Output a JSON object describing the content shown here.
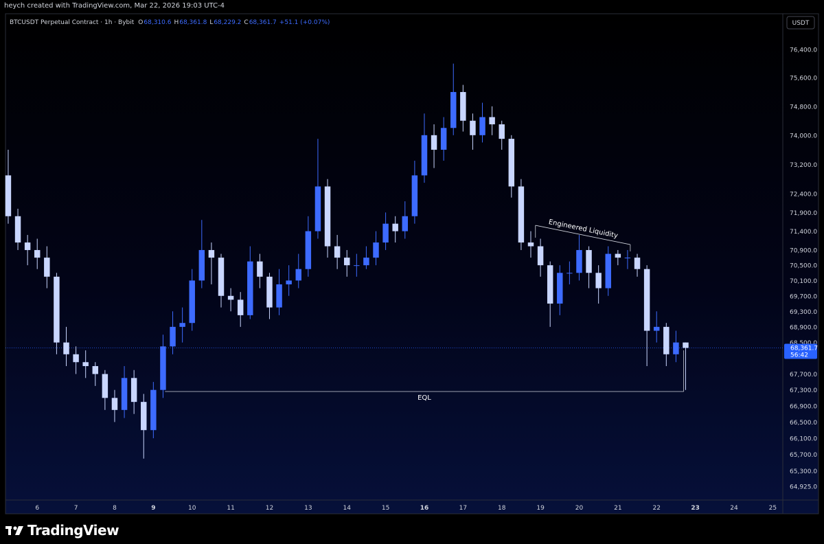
{
  "header": {
    "text": "heych created with TradingView.com, Mar 22, 2026 19:03 UTC-4"
  },
  "footer": {
    "brand": "TradingView"
  },
  "chart_data": {
    "type": "candlestick",
    "symbol": "BTCUSDT Perpetual Contract · 1h · Bybit",
    "legend": [
      {
        "key": "O",
        "value": "68,310.6"
      },
      {
        "key": "H",
        "value": "68,361.8"
      },
      {
        "key": "L",
        "value": "68,229.2"
      },
      {
        "key": "C",
        "value": "68,361.7"
      }
    ],
    "change": "+51.1 (+0.07%)",
    "currency": "USDT",
    "log_scale": true,
    "up_color": "#3d6bff",
    "down_color": "#c9d6ff",
    "x": [
      5.25,
      5.5,
      5.75,
      6,
      6.25,
      6.5,
      6.75,
      7,
      7.25,
      7.5,
      7.75,
      8,
      8.25,
      8.5,
      8.75,
      9,
      9.25,
      9.5,
      9.75,
      10,
      10.25,
      10.5,
      10.75,
      11,
      11.25,
      11.5,
      11.75,
      12,
      12.25,
      12.5,
      12.75,
      13,
      13.25,
      13.5,
      13.75,
      14,
      14.25,
      14.5,
      14.75,
      15,
      15.25,
      15.5,
      15.75,
      16,
      16.25,
      16.5,
      16.75,
      17,
      17.25,
      17.5,
      17.75,
      18,
      18.25,
      18.5,
      18.75,
      19,
      19.25,
      19.5,
      19.75,
      20,
      20.25,
      20.5,
      20.75,
      21,
      21.25,
      21.5,
      21.75,
      22,
      22.25,
      22.5,
      22.75
    ],
    "open": [
      72900,
      71800,
      71100,
      70900,
      70700,
      70200,
      68500,
      68200,
      68000,
      67900,
      67700,
      67100,
      66800,
      67600,
      67000,
      66300,
      67300,
      68400,
      68900,
      69000,
      70100,
      70900,
      70700,
      69700,
      69600,
      69200,
      70600,
      70200,
      69400,
      70000,
      70100,
      70400,
      71400,
      72600,
      71000,
      70700,
      70500,
      70500,
      70700,
      71100,
      71600,
      71400,
      71800,
      72900,
      74000,
      73600,
      74200,
      75200,
      74400,
      74000,
      74500,
      74300,
      73900,
      72600,
      71100,
      71000,
      70500,
      69500,
      70300,
      70300,
      70900,
      70300,
      69900,
      70800,
      70700,
      70700,
      70400,
      68800,
      68900,
      68200,
      68500
    ],
    "high": [
      73600,
      72000,
      71300,
      71200,
      71000,
      70300,
      68900,
      68400,
      68300,
      68000,
      67800,
      67300,
      67900,
      67800,
      67200,
      67500,
      68700,
      69300,
      69400,
      70400,
      71700,
      71100,
      70800,
      69900,
      69800,
      71000,
      70800,
      70300,
      70400,
      70500,
      70800,
      71800,
      73900,
      72800,
      71300,
      70900,
      70800,
      71000,
      71400,
      71900,
      71800,
      72200,
      73300,
      74600,
      74300,
      74500,
      76000,
      75400,
      74600,
      74900,
      74800,
      74400,
      74000,
      72800,
      71400,
      71200,
      70600,
      70500,
      70600,
      71300,
      71000,
      70500,
      71000,
      70900,
      70900,
      70800,
      70500,
      69300,
      69000,
      68800,
      68500
    ],
    "low": [
      71600,
      70900,
      70500,
      70400,
      69900,
      68200,
      67900,
      67700,
      67600,
      67400,
      66800,
      66500,
      66600,
      66700,
      65600,
      66100,
      67100,
      68200,
      68500,
      68800,
      69900,
      70000,
      69400,
      69300,
      68900,
      69100,
      69900,
      69100,
      69200,
      69700,
      69900,
      70200,
      71200,
      70700,
      70400,
      70200,
      70200,
      70400,
      70500,
      70900,
      71100,
      71200,
      71600,
      72700,
      73100,
      73300,
      74000,
      74100,
      73600,
      73800,
      74000,
      73600,
      72300,
      70900,
      70700,
      70200,
      68900,
      69200,
      70000,
      70100,
      69900,
      69500,
      69700,
      70500,
      70400,
      70200,
      67900,
      68500,
      67900,
      68000,
      67300
    ],
    "close": [
      71800,
      71100,
      70900,
      70700,
      70200,
      68500,
      68200,
      68000,
      67900,
      67700,
      67100,
      66800,
      67600,
      67000,
      66300,
      67300,
      68400,
      68900,
      69000,
      70100,
      70900,
      70700,
      69700,
      69600,
      69200,
      70600,
      70200,
      69400,
      70000,
      70100,
      70400,
      71400,
      72600,
      71000,
      70700,
      70500,
      70500,
      70700,
      71100,
      71600,
      71400,
      71800,
      72900,
      74000,
      73600,
      74200,
      75200,
      74400,
      74000,
      74500,
      74300,
      73900,
      72600,
      71100,
      71000,
      70500,
      69500,
      70300,
      70300,
      70900,
      70300,
      69900,
      70800,
      70700,
      70700,
      70400,
      68800,
      68900,
      68200,
      68500,
      68361.7
    ],
    "xlim": [
      5.18,
      25.26
    ],
    "ylim": [
      64595,
      77030
    ],
    "xticks": [
      6,
      7,
      8,
      9,
      10,
      11,
      12,
      13,
      14,
      15,
      16,
      17,
      18,
      19,
      20,
      21,
      22,
      23,
      24,
      25
    ],
    "xticks_bold": [
      9,
      16,
      23
    ],
    "yticks": [
      {
        "value": 76400,
        "label": "76,400.0"
      },
      {
        "value": 75600,
        "label": "75,600.0"
      },
      {
        "value": 74800,
        "label": "74,800.0"
      },
      {
        "value": 74000,
        "label": "74,000.0"
      },
      {
        "value": 73200,
        "label": "73,200.0"
      },
      {
        "value": 72400,
        "label": "72,400.0"
      },
      {
        "value": 71900,
        "label": "71,900.0"
      },
      {
        "value": 71400,
        "label": "71,400.0"
      },
      {
        "value": 70900,
        "label": "70,900.0"
      },
      {
        "value": 70500,
        "label": "70,500.0"
      },
      {
        "value": 70100,
        "label": "70,100.0"
      },
      {
        "value": 69700,
        "label": "69,700.0"
      },
      {
        "value": 69300,
        "label": "69,300.0"
      },
      {
        "value": 68900,
        "label": "68,900.0"
      },
      {
        "value": 68500,
        "label": "68,500.0"
      },
      {
        "value": 67700,
        "label": "67,700.0"
      },
      {
        "value": 67300,
        "label": "67,300.0"
      },
      {
        "value": 66900,
        "label": "66,900.0"
      },
      {
        "value": 66500,
        "label": "66,500.0"
      },
      {
        "value": 66100,
        "label": "66,100.0"
      },
      {
        "value": 65700,
        "label": "65,700.0"
      },
      {
        "value": 65300,
        "label": "65,300.0"
      },
      {
        "value": 64925,
        "label": "64,925.0"
      }
    ],
    "last_price": {
      "value": 68361.7,
      "label": "68,361.7",
      "countdown": "56:42",
      "color": "#2962ff"
    },
    "annotations": [
      {
        "text": "EQL",
        "x": [
          9.3,
          22.7
        ],
        "y": [
          67260,
          67260
        ]
      },
      {
        "text": "Engineered Liquidity",
        "x": [
          18.87,
          21.32
        ],
        "y": [
          71556,
          71045
        ]
      }
    ]
  }
}
